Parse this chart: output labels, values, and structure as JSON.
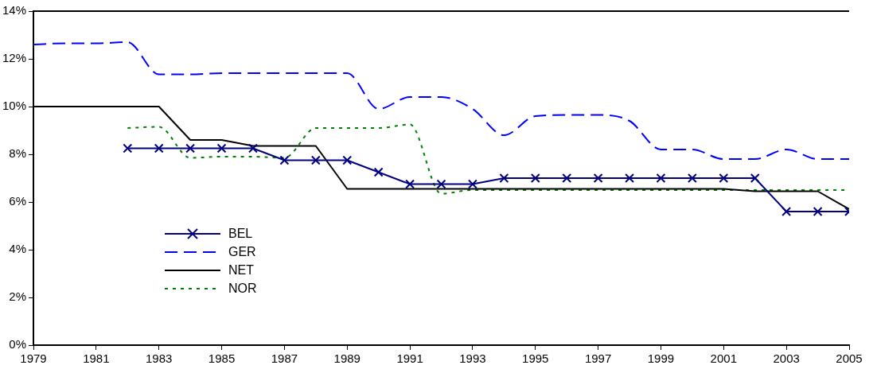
{
  "chart_data": {
    "type": "line",
    "x": [
      1979,
      1980,
      1981,
      1982,
      1983,
      1984,
      1985,
      1986,
      1987,
      1988,
      1989,
      1990,
      1991,
      1992,
      1993,
      1994,
      1995,
      1996,
      1997,
      1998,
      1999,
      2000,
      2001,
      2002,
      2003,
      2004,
      2005
    ],
    "series": [
      {
        "name": "BEL",
        "color": "#000080",
        "marker": "cross",
        "line_style": "solid",
        "values": [
          null,
          null,
          null,
          8.25,
          8.25,
          8.25,
          8.25,
          8.25,
          7.75,
          7.75,
          7.75,
          7.25,
          6.75,
          6.75,
          6.75,
          7.0,
          7.0,
          7.0,
          7.0,
          7.0,
          7.0,
          7.0,
          7.0,
          7.0,
          5.6,
          5.6,
          5.6
        ]
      },
      {
        "name": "GER",
        "color": "#0000ff",
        "marker": "none",
        "line_style": "dashed",
        "values": [
          12.6,
          12.65,
          12.65,
          12.7,
          11.35,
          11.35,
          11.4,
          11.4,
          11.4,
          11.4,
          11.4,
          9.9,
          10.4,
          10.4,
          9.9,
          8.8,
          9.6,
          9.65,
          9.65,
          9.4,
          8.2,
          8.2,
          7.8,
          7.8,
          8.2,
          7.8,
          7.8
        ]
      },
      {
        "name": "NET",
        "color": "#000000",
        "marker": "none",
        "line_style": "solid",
        "values": [
          10,
          10,
          10,
          10,
          10,
          8.6,
          8.6,
          8.35,
          8.35,
          8.35,
          6.55,
          6.55,
          6.55,
          6.55,
          6.55,
          6.55,
          6.55,
          6.55,
          6.55,
          6.55,
          6.55,
          6.55,
          6.55,
          6.45,
          6.45,
          6.45,
          5.7
        ]
      },
      {
        "name": "NOR",
        "color": "#008000",
        "marker": "none",
        "line_style": "dotted",
        "values": [
          null,
          null,
          null,
          9.1,
          9.15,
          7.85,
          7.9,
          7.9,
          7.85,
          9.1,
          9.1,
          9.1,
          9.25,
          6.35,
          6.5,
          6.5,
          6.5,
          6.5,
          6.5,
          6.5,
          6.5,
          6.5,
          6.5,
          6.5,
          6.5,
          6.5,
          6.5
        ]
      }
    ],
    "xlim": [
      1979,
      2005
    ],
    "xticks": [
      1979,
      1981,
      1983,
      1985,
      1987,
      1989,
      1991,
      1993,
      1995,
      1997,
      1999,
      2001,
      2003,
      2005
    ],
    "ylim": [
      0,
      14
    ],
    "yticks": [
      {
        "value": 0,
        "label": "0%"
      },
      {
        "value": 2,
        "label": "2%"
      },
      {
        "value": 4,
        "label": "4%"
      },
      {
        "value": 6,
        "label": "6%"
      },
      {
        "value": 8,
        "label": "8%"
      },
      {
        "value": 10,
        "label": "10%"
      },
      {
        "value": 12,
        "label": "12%"
      },
      {
        "value": 14,
        "label": "14%"
      }
    ],
    "grid": false,
    "legend": "bottom left"
  }
}
